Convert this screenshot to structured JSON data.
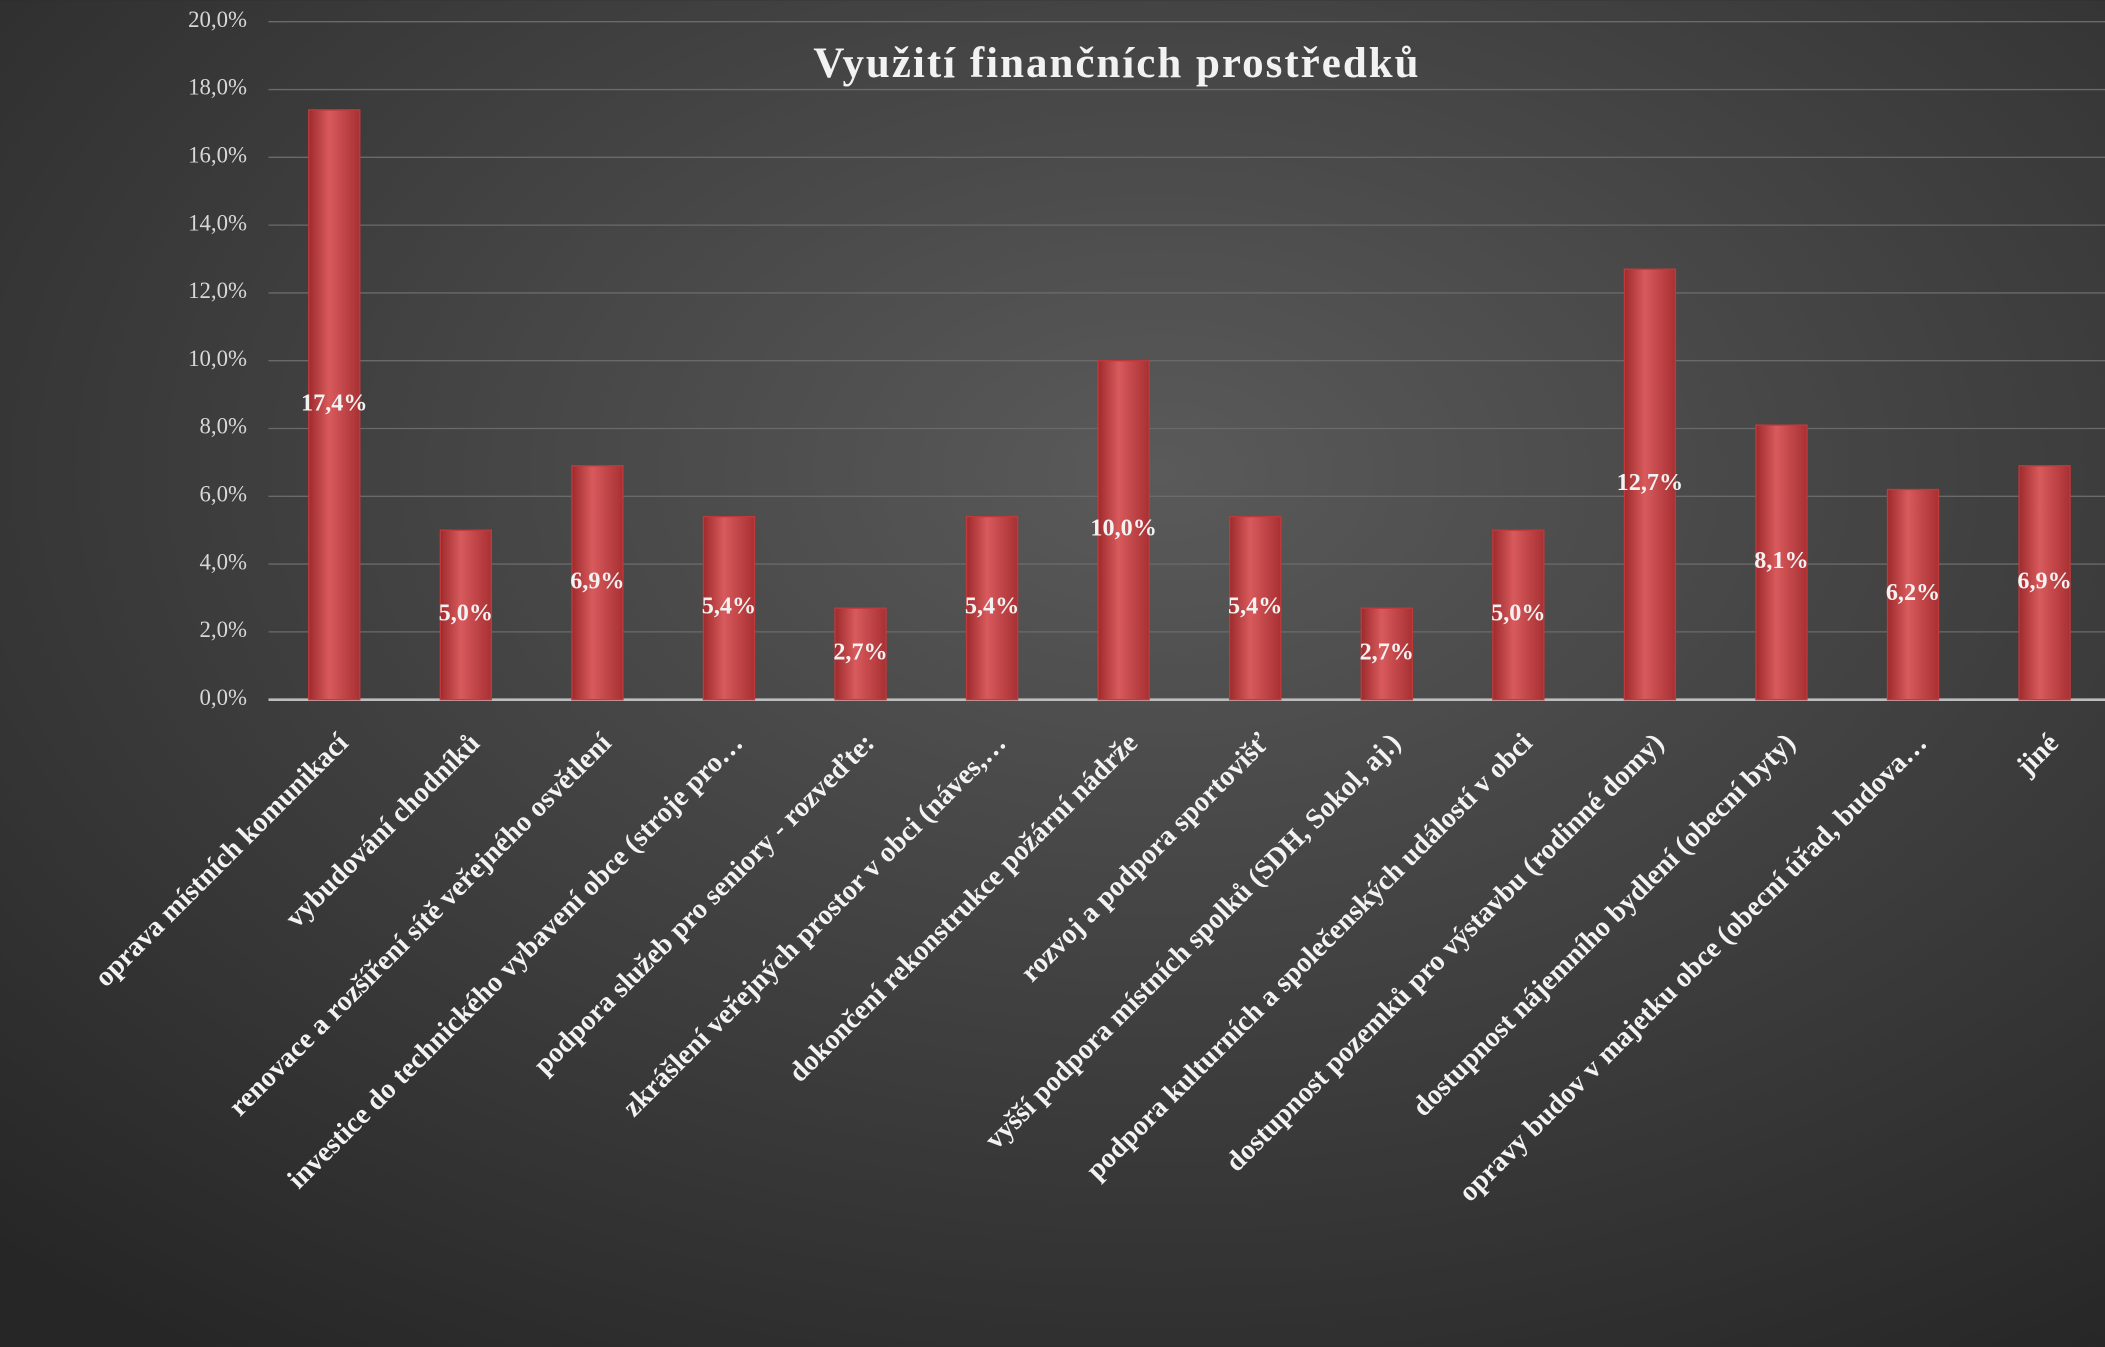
{
  "chart_data": {
    "type": "bar",
    "title": "Využití finančních prostředků",
    "categories": [
      "oprava místních komunikací",
      "vybudování chodníků",
      "renovace a rozšíření sítě veřejného osvětlení",
      "investice do technického vybavení obce (stroje pro…",
      "podpora služeb pro seniory - rozveďte:",
      "zkrášlení veřejných prostor v obci (náves,…",
      "dokončení rekonstrukce požární nádrže",
      "rozvoj a podpora sportovišť",
      "vyšší podpora místních spolků (SDH, Sokol, aj.)",
      "podpora kulturních a společenských událostí v obci",
      "dostupnost pozemků pro výstavbu (rodinné domy)",
      "dostupnost nájemního bydlení (obecní byty)",
      "opravy budov v majetku obce (obecní úřad, budova…",
      "jiné"
    ],
    "values": [
      17.4,
      5.0,
      6.9,
      5.4,
      2.7,
      5.4,
      10.0,
      5.4,
      2.7,
      5.0,
      12.7,
      8.1,
      6.2,
      6.9
    ],
    "value_labels": [
      "17,4%",
      "5,0%",
      "6,9%",
      "5,4%",
      "2,7%",
      "5,4%",
      "10,0%",
      "5,4%",
      "2,7%",
      "5,0%",
      "12,7%",
      "8,1%",
      "6,2%",
      "6,9%"
    ],
    "color": "#c0393b",
    "ylim": [
      0,
      20
    ],
    "yticks": [
      {
        "value": 0,
        "label": "0,0%"
      },
      {
        "value": 2,
        "label": "2,0%"
      },
      {
        "value": 4,
        "label": "4,0%"
      },
      {
        "value": 6,
        "label": "6,0%"
      },
      {
        "value": 8,
        "label": "8,0%"
      },
      {
        "value": 10,
        "label": "10,0%"
      },
      {
        "value": 12,
        "label": "12,0%"
      },
      {
        "value": 14,
        "label": "14,0%"
      },
      {
        "value": 16,
        "label": "16,0%"
      },
      {
        "value": 18,
        "label": "18,0%"
      },
      {
        "value": 20,
        "label": "20,0%"
      }
    ],
    "grid": true
  }
}
